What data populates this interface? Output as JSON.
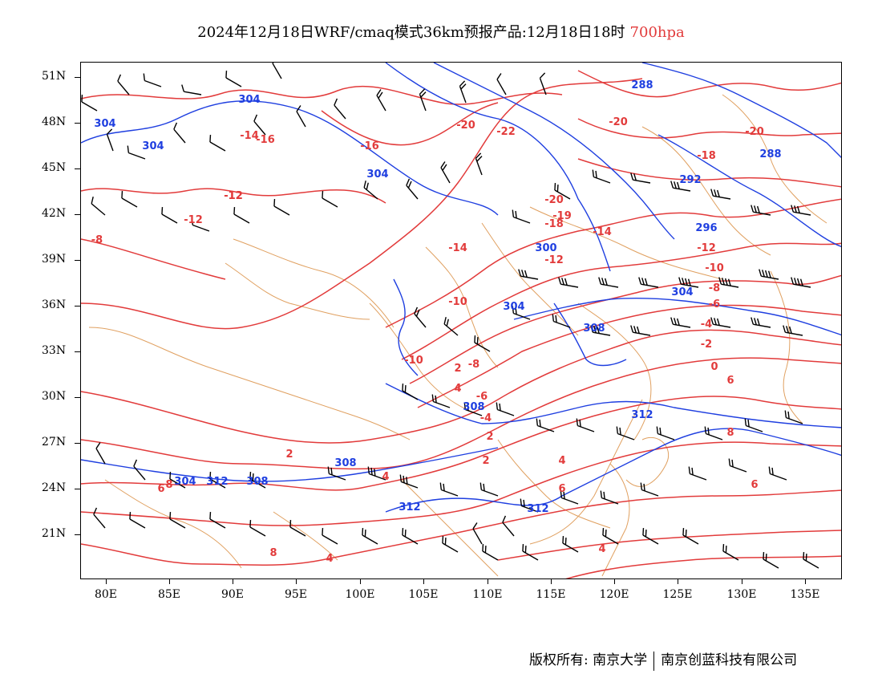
{
  "title": {
    "main": "2024年12月18日WRF/cmaq模式36km预报产品:12月18日18时",
    "level": "700hpa"
  },
  "colors": {
    "temperature": "#e23b3b",
    "height": "#1f3fe0",
    "boundary": "#e0a060",
    "wind": "#000000"
  },
  "axes": {
    "y_labels": [
      "51N",
      "48N",
      "45N",
      "42N",
      "39N",
      "36N",
      "33N",
      "30N",
      "27N",
      "24N",
      "21N"
    ],
    "x_labels": [
      "80E",
      "85E",
      "90E",
      "95E",
      "100E",
      "105E",
      "110E",
      "115E",
      "120E",
      "125E",
      "130E",
      "135E"
    ]
  },
  "temperature_labels": [
    "-20",
    "-22",
    "-20",
    "-20",
    "-18",
    "-16",
    "-14",
    "-16",
    "-12",
    "-12",
    "-8",
    "-20",
    "-19",
    "-18",
    "-14",
    "-14",
    "-12",
    "-12",
    "-10",
    "-10",
    "-8",
    "-6",
    "-4",
    "-2",
    "0",
    "2",
    "4",
    "6",
    "-12",
    "-10",
    "-8",
    "-6",
    "-4",
    "2",
    "2",
    "4",
    "6",
    "8",
    "2",
    "4",
    "8",
    "6",
    "4",
    "8",
    "4",
    "6"
  ],
  "height_labels": [
    "304",
    "304",
    "304",
    "304",
    "288",
    "288",
    "292",
    "300",
    "296",
    "304",
    "304",
    "308",
    "308",
    "312",
    "308",
    "312",
    "312",
    "312",
    "304",
    "308"
  ],
  "footer": {
    "copyright": "版权所有: 南京大学",
    "company": "南京创蓝科技有限公司"
  }
}
